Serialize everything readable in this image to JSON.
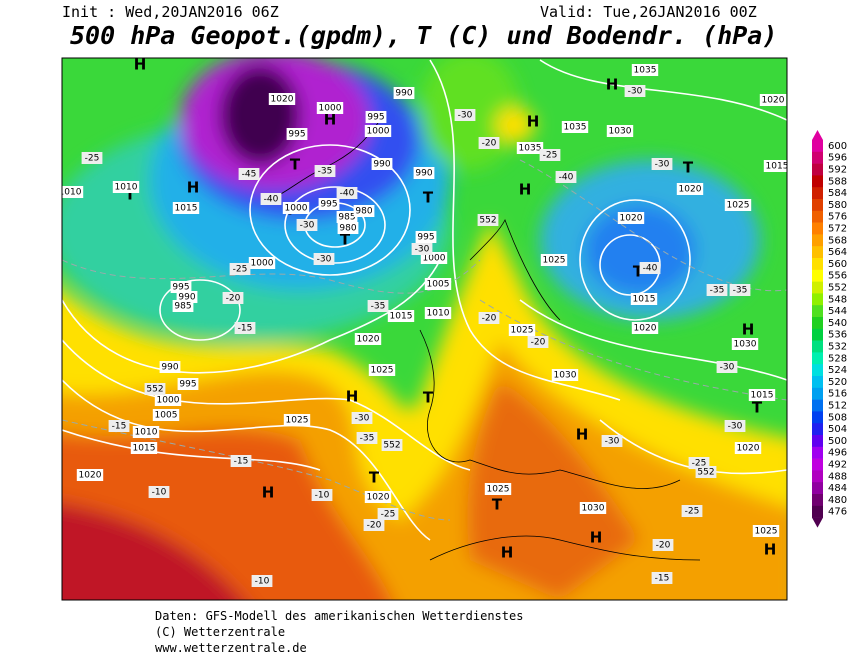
{
  "header": {
    "init": "Init : Wed,20JAN2016 06Z",
    "valid": "Valid: Tue,26JAN2016 00Z",
    "title": "500 hPa Geopot.(gpdm), T (C) und Bodendr. (hPa)"
  },
  "colorbar": {
    "values": [
      600,
      596,
      592,
      588,
      584,
      580,
      576,
      572,
      568,
      564,
      560,
      556,
      552,
      548,
      544,
      540,
      536,
      532,
      528,
      524,
      520,
      516,
      512,
      508,
      504,
      500,
      496,
      492,
      488,
      484,
      480,
      476
    ],
    "colors": [
      "#e000a0",
      "#d00070",
      "#c00040",
      "#c00000",
      "#d02000",
      "#e04000",
      "#f06000",
      "#ff8000",
      "#ffa000",
      "#ffc000",
      "#ffe000",
      "#ffff00",
      "#d0f000",
      "#90f000",
      "#50e020",
      "#20d020",
      "#00d040",
      "#00e080",
      "#00f0b0",
      "#00e0e0",
      "#00c0f0",
      "#00a0f0",
      "#0070f0",
      "#0040f0",
      "#2020f0",
      "#6000f0",
      "#a000f0",
      "#c000e0",
      "#b000c0",
      "#9000a0",
      "#700070",
      "#500050"
    ]
  },
  "map": {
    "pressure_centers": [
      "H",
      "H",
      "H",
      "T",
      "T",
      "T",
      "T",
      "T",
      "H",
      "H",
      "H",
      "T",
      "T",
      "H",
      "H",
      "T",
      "T",
      "H",
      "T",
      "H",
      "T",
      "H",
      "H",
      "H"
    ],
    "isobar_labels": [
      "1020",
      "1000",
      "995",
      "990",
      "1000",
      "995",
      "990",
      "990",
      "995",
      "985",
      "980",
      "980",
      "1000",
      "995",
      "1000",
      "1010",
      "1015",
      "1000",
      "995",
      "990",
      "985",
      "1005",
      "1015",
      "1010",
      "1020",
      "990",
      "995",
      "1000",
      "1005",
      "1010",
      "1015",
      "1025",
      "1025",
      "1020",
      "1020",
      "1025",
      "1030",
      "1025",
      "1030",
      "1035",
      "1035",
      "1030",
      "1035",
      "1025",
      "1020",
      "1020",
      "1025",
      "1015",
      "1020",
      "1030",
      "1015",
      "1020",
      "1015",
      "1020",
      "1025",
      "1010"
    ],
    "isotherm_labels": [
      "-45",
      "-40",
      "-35",
      "-30",
      "-40",
      "-30",
      "-25",
      "-20",
      "-15",
      "-35",
      "-30",
      "-25",
      "-20",
      "-30",
      "-25",
      "-40",
      "-30",
      "-40",
      "-35",
      "-35",
      "-30",
      "-30",
      "-30",
      "-25",
      "-20",
      "-20",
      "-30",
      "-35",
      "-15",
      "-15",
      "-10",
      "-10",
      "-25",
      "-20",
      "-25",
      "-20",
      "-15",
      "-10",
      "-30",
      "552",
      "552",
      "552",
      "552"
    ]
  },
  "footer": {
    "line1": "Daten: GFS-Modell des amerikanischen Wetterdienstes",
    "line2": "(C) Wetterzentrale",
    "line3": "www.wetterzentrale.de"
  }
}
